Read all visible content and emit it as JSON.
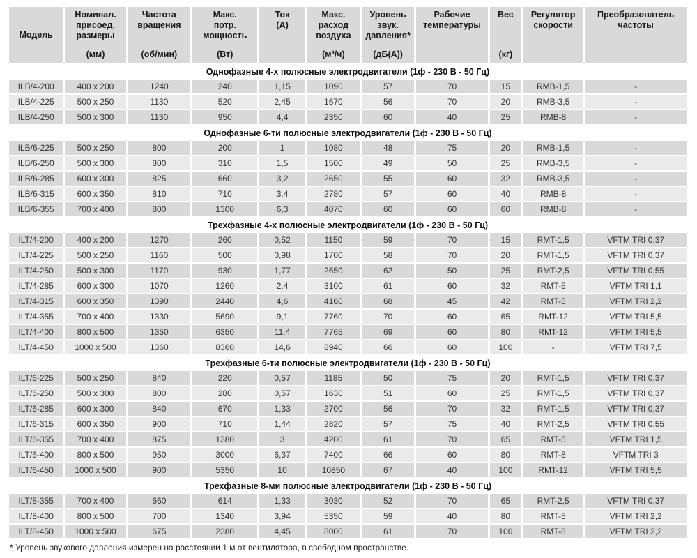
{
  "colors": {
    "page_bg": "#ffffff",
    "header_bg": "#d9d9d9",
    "row_dark": "#d9d9d9",
    "row_light": "#eaeaea",
    "text": "#333333"
  },
  "table": {
    "columns": [
      {
        "id": "model",
        "title": "Модель",
        "unit": "",
        "layout": "center"
      },
      {
        "id": "size",
        "title": "Номинал.\nприсоед.\nразмеры",
        "unit": "(мм)",
        "layout": "between"
      },
      {
        "id": "rpm",
        "title": "Частота\nвращения",
        "unit": "(об/мин)",
        "layout": "between"
      },
      {
        "id": "power",
        "title": "Макс.\nпотр.\nмощность",
        "unit": "(Вт)",
        "layout": "between"
      },
      {
        "id": "current",
        "title": "Ток",
        "unit": "(А)",
        "layout": "top"
      },
      {
        "id": "airflow",
        "title": "Макс.\nрасход\nвоздуха",
        "unit": "(м³/ч)",
        "layout": "between"
      },
      {
        "id": "noise",
        "title": "Уровень\nзвук.\nдавления*",
        "unit": "(дБ(А))",
        "layout": "between"
      },
      {
        "id": "temp",
        "title": "Рабочие\nтемпературы",
        "unit": "",
        "layout": "top"
      },
      {
        "id": "weight",
        "title": "Вес",
        "unit": "(кг)",
        "layout": "between"
      },
      {
        "id": "regulator",
        "title": "Регулятор\nскорости",
        "unit": "",
        "layout": "top"
      },
      {
        "id": "converter",
        "title": "Преобразователь\nчастоты",
        "unit": "",
        "layout": "top"
      }
    ],
    "sections": [
      {
        "title": "Однофазные 4-х полюсные электродвигатели (1ф - 230 В - 50 Гц)",
        "rows": [
          [
            "ILB/4-200",
            "400 x 200",
            "1240",
            "240",
            "1,15",
            "1090",
            "57",
            "70",
            "15",
            "RMB-1,5",
            "-"
          ],
          [
            "ILB/4-225",
            "500 x 250",
            "1130",
            "520",
            "2,45",
            "1670",
            "56",
            "70",
            "20",
            "RMB-3,5",
            "-"
          ],
          [
            "ILB/4-250",
            "500 x 300",
            "1130",
            "950",
            "4,4",
            "2350",
            "60",
            "40",
            "25",
            "RMB-8",
            "-"
          ]
        ]
      },
      {
        "title": "Однофазные 6-ти полюсные электродвигатели (1ф - 230 В - 50 Гц)",
        "rows": [
          [
            "ILB/6-225",
            "500 x 250",
            "800",
            "200",
            "1",
            "1080",
            "48",
            "75",
            "20",
            "RMB-1,5",
            "-"
          ],
          [
            "ILB/6-250",
            "500 x 300",
            "800",
            "310",
            "1,5",
            "1500",
            "49",
            "50",
            "25",
            "RMB-3,5",
            "-"
          ],
          [
            "ILB/6-285",
            "600 x 300",
            "825",
            "660",
            "3,2",
            "2650",
            "55",
            "60",
            "32",
            "RMB-3,5",
            "-"
          ],
          [
            "ILB/6-315",
            "600 x 350",
            "810",
            "710",
            "3,4",
            "2780",
            "57",
            "60",
            "40",
            "RMB-8",
            "-"
          ],
          [
            "ILB/6-355",
            "700 x 400",
            "800",
            "1300",
            "6,3",
            "4070",
            "60",
            "60",
            "60",
            "RMB-8",
            "-"
          ]
        ]
      },
      {
        "title": "Трехфазные 4-х полюсные электродвигатели (1ф - 230 В - 50 Гц)",
        "rows": [
          [
            "ILT/4-200",
            "400 x 200",
            "1270",
            "260",
            "0,52",
            "1150",
            "59",
            "70",
            "15",
            "RMT-1,5",
            "VFTM TRI 0,37"
          ],
          [
            "ILT/4-225",
            "500 x 250",
            "1160",
            "500",
            "0,98",
            "1700",
            "58",
            "70",
            "20",
            "RMT-1,5",
            "VFTM TRI 0,37"
          ],
          [
            "ILT/4-250",
            "500 x 300",
            "1170",
            "930",
            "1,77",
            "2650",
            "62",
            "50",
            "25",
            "RMT-2,5",
            "VFTM TRI 0,55"
          ],
          [
            "ILT/4-285",
            "600 x 300",
            "1070",
            "1260",
            "2,4",
            "3100",
            "61",
            "60",
            "32",
            "RMT-5",
            "VFTM TRI 1,1"
          ],
          [
            "ILT/4-315",
            "600 x 350",
            "1390",
            "2440",
            "4,6",
            "4160",
            "68",
            "45",
            "42",
            "RMT-5",
            "VFTM TRI 2,2"
          ],
          [
            "ILT/4-355",
            "700 x 400",
            "1330",
            "5690",
            "9,1",
            "7760",
            "70",
            "60",
            "65",
            "RMT-12",
            "VFTM TRI 5,5"
          ],
          [
            "ILT/4-400",
            "800 x 500",
            "1350",
            "6350",
            "11,4",
            "7765",
            "69",
            "60",
            "80",
            "RMT-12",
            "VFTM TRI 5,5"
          ],
          [
            "ILT/4-450",
            "1000 x 500",
            "1360",
            "8360",
            "14,6",
            "8940",
            "66",
            "60",
            "100",
            "-",
            "VFTM TRI 7,5"
          ]
        ]
      },
      {
        "title": "Трехфазные 6-ти полюсные электродвигатели (1ф - 230 В - 50 Гц)",
        "rows": [
          [
            "ILT/6-225",
            "500 x 250",
            "840",
            "220",
            "0,57",
            "1185",
            "50",
            "75",
            "20",
            "RMT-1,5",
            "VFTM TRI 0,37"
          ],
          [
            "ILT/6-250",
            "500 x 300",
            "800",
            "280",
            "0,57",
            "1630",
            "51",
            "60",
            "25",
            "RMT-1,5",
            "VFTM TRI 0,37"
          ],
          [
            "ILT/6-285",
            "600 x 300",
            "840",
            "670",
            "1,33",
            "2700",
            "56",
            "70",
            "32",
            "RMT-1,5",
            "VFTM TRI 0,37"
          ],
          [
            "ILT/6-315",
            "600 x 350",
            "900",
            "710",
            "1,44",
            "2820",
            "57",
            "75",
            "40",
            "RMT-2,5",
            "VFTM TRI 0,55"
          ],
          [
            "ILT/6-355",
            "700 x 400",
            "875",
            "1380",
            "3",
            "4200",
            "61",
            "70",
            "65",
            "RMT-5",
            "VFTM TRI 1,5"
          ],
          [
            "ILT/6-400",
            "800 x 500",
            "950",
            "3000",
            "6,37",
            "7400",
            "66",
            "60",
            "80",
            "RMT-8",
            "VFTM TRI 3"
          ],
          [
            "ILT/6-450",
            "1000 x 500",
            "900",
            "5350",
            "10",
            "10850",
            "67",
            "40",
            "100",
            "RMT-12",
            "VFTM TRI 5,5"
          ]
        ]
      },
      {
        "title": "Трехфазные 8-ми полюсные электродвигатели (1ф - 230 В - 50 Гц)",
        "rows": [
          [
            "ILT/8-355",
            "700 x 400",
            "660",
            "614",
            "1,33",
            "3030",
            "52",
            "70",
            "65",
            "RMT-2,5",
            "VFTM TRI 0,37"
          ],
          [
            "ILT/8-400",
            "800 x 500",
            "700",
            "1340",
            "3,94",
            "5350",
            "59",
            "40",
            "80",
            "RMT-5",
            "VFTM TRI 2,2"
          ],
          [
            "ILT/8-450",
            "1000 x 500",
            "675",
            "2380",
            "4,45",
            "8000",
            "61",
            "70",
            "100",
            "RMT-8",
            "VFTM TRI 2,2"
          ]
        ]
      }
    ],
    "footnote": "* Уровень звукового давления измерен на расстоянии 1 м от вентилятора, в свободном пространстве."
  }
}
